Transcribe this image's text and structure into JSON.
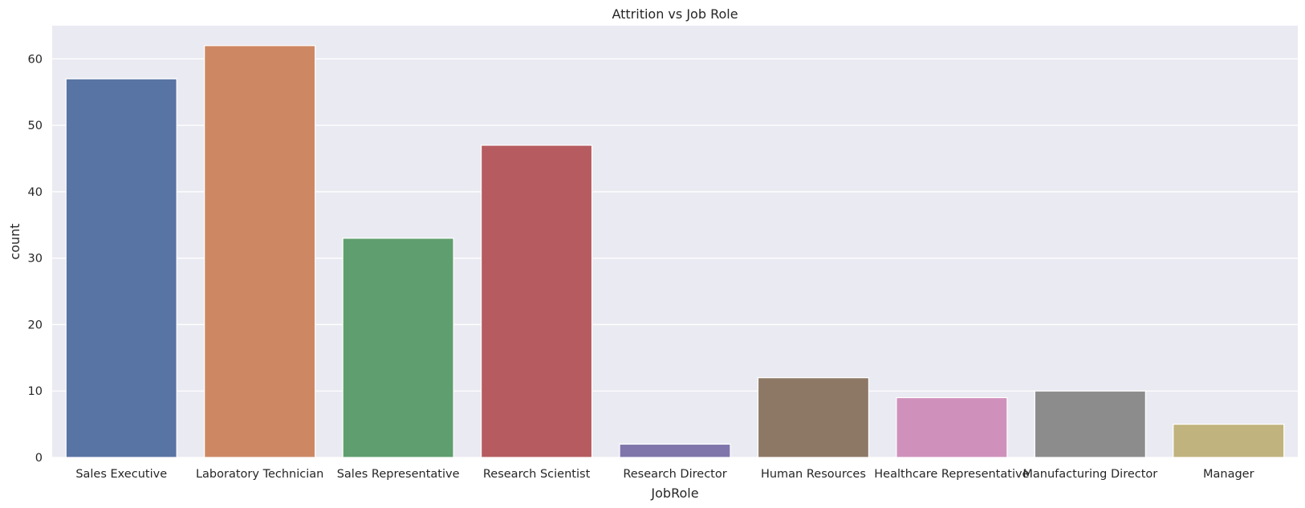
{
  "chart_data": {
    "type": "bar",
    "title": "Attrition vs Job Role",
    "xlabel": "JobRole",
    "ylabel": "count",
    "categories": [
      "Sales Executive",
      "Laboratory Technician",
      "Sales Representative",
      "Research Scientist",
      "Research Director",
      "Human Resources",
      "Healthcare Representative",
      "Manufacturing Director",
      "Manager"
    ],
    "values": [
      57,
      62,
      33,
      47,
      2,
      12,
      9,
      10,
      5
    ],
    "colors": [
      "#5874a5",
      "#cd8863",
      "#5f9e6e",
      "#b65c60",
      "#8076ac",
      "#8d7866",
      "#cf91bc",
      "#8c8c8c",
      "#c0b37d"
    ],
    "background": "#eaeaf2",
    "grid": true,
    "ylim": [
      0,
      65
    ],
    "yticks": [
      0,
      10,
      20,
      30,
      40,
      50,
      60
    ]
  }
}
